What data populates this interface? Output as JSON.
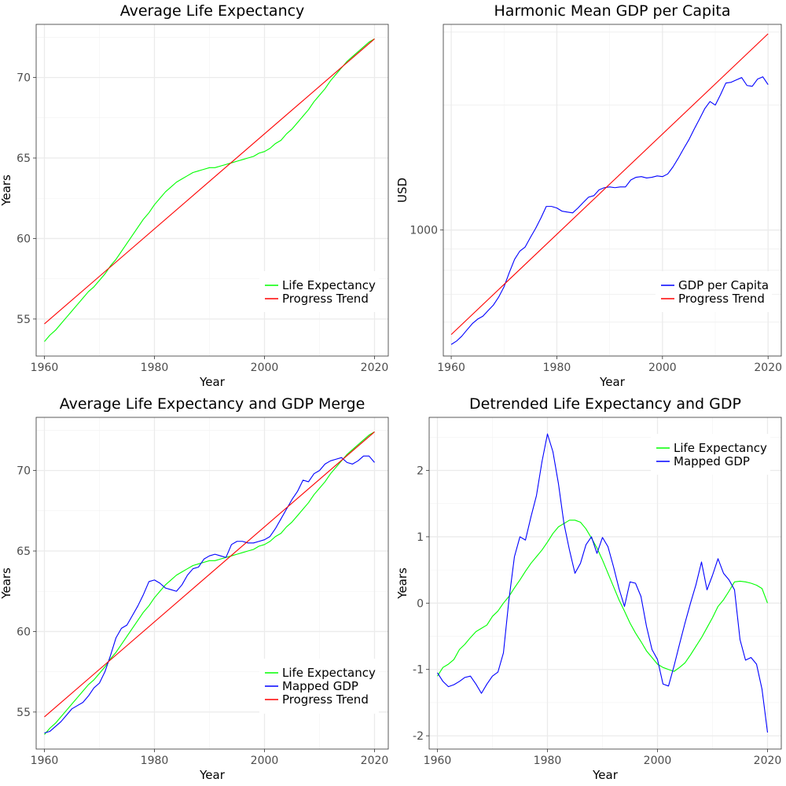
{
  "chart_data": [
    {
      "type": "line",
      "title": "Average Life Expectancy",
      "xlabel": "Year",
      "ylabel": "Years",
      "xlim": [
        1958.5,
        2022.5
      ],
      "ylim": [
        52.7,
        73.3
      ],
      "xticks": [
        1960,
        1980,
        2000,
        2020
      ],
      "yticks": [
        55,
        60,
        65,
        70
      ],
      "ytick_labels": [
        "55",
        "60",
        "65",
        "70"
      ],
      "grid": true,
      "legend_position": "bottom-right",
      "series": [
        {
          "name": "Life Expectancy",
          "color": "#00ff00",
          "x": [
            1960,
            1961,
            1962,
            1963,
            1964,
            1965,
            1966,
            1967,
            1968,
            1969,
            1970,
            1971,
            1972,
            1973,
            1974,
            1975,
            1976,
            1977,
            1978,
            1979,
            1980,
            1981,
            1982,
            1983,
            1984,
            1985,
            1986,
            1987,
            1988,
            1989,
            1990,
            1991,
            1992,
            1993,
            1994,
            1995,
            1996,
            1997,
            1998,
            1999,
            2000,
            2001,
            2002,
            2003,
            2004,
            2005,
            2006,
            2007,
            2008,
            2009,
            2010,
            2011,
            2012,
            2013,
            2014,
            2015,
            2016,
            2017,
            2018,
            2019,
            2020
          ],
          "y": [
            53.6,
            54.0,
            54.3,
            54.7,
            55.1,
            55.5,
            55.9,
            56.3,
            56.7,
            57.0,
            57.4,
            57.8,
            58.3,
            58.7,
            59.2,
            59.7,
            60.2,
            60.7,
            61.2,
            61.6,
            62.1,
            62.5,
            62.9,
            63.2,
            63.5,
            63.7,
            63.9,
            64.1,
            64.2,
            64.3,
            64.4,
            64.4,
            64.5,
            64.6,
            64.7,
            64.8,
            64.9,
            65.0,
            65.1,
            65.3,
            65.4,
            65.6,
            65.9,
            66.1,
            66.5,
            66.8,
            67.2,
            67.6,
            68.0,
            68.5,
            68.9,
            69.3,
            69.8,
            70.2,
            70.6,
            71.0,
            71.3,
            71.6,
            71.9,
            72.2,
            72.4
          ]
        },
        {
          "name": "Progress Trend",
          "color": "#ff0000",
          "x": [
            1960,
            2020
          ],
          "y": [
            54.7,
            72.4
          ]
        }
      ]
    },
    {
      "type": "line",
      "title": "Harmonic Mean GDP per Capita",
      "xlabel": "Year",
      "ylabel": "USD",
      "xlim": [
        1958.5,
        2022.5
      ],
      "ylim": [
        497,
        3130
      ],
      "y_scale": "log",
      "xticks": [
        1960,
        1980,
        2000,
        2020
      ],
      "yticks": [
        1000
      ],
      "ytick_labels": [
        "1000"
      ],
      "grid": true,
      "legend_position": "bottom-right",
      "series": [
        {
          "name": "GDP per Capita",
          "color": "#0000ff",
          "x": [
            1960,
            1961,
            1962,
            1963,
            1964,
            1965,
            1966,
            1967,
            1968,
            1969,
            1970,
            1971,
            1972,
            1973,
            1974,
            1975,
            1976,
            1977,
            1978,
            1979,
            1980,
            1981,
            1982,
            1983,
            1984,
            1985,
            1986,
            1987,
            1988,
            1989,
            1990,
            1991,
            1992,
            1993,
            1994,
            1995,
            1996,
            1997,
            1998,
            1999,
            2000,
            2001,
            2002,
            2003,
            2004,
            2005,
            2006,
            2007,
            2008,
            2009,
            2010,
            2011,
            2012,
            2013,
            2014,
            2015,
            2016,
            2017,
            2018,
            2019,
            2020
          ],
          "y": [
            530,
            540,
            555,
            575,
            595,
            610,
            620,
            640,
            660,
            690,
            730,
            790,
            850,
            890,
            910,
            960,
            1010,
            1070,
            1140,
            1140,
            1130,
            1110,
            1105,
            1100,
            1130,
            1165,
            1200,
            1210,
            1250,
            1265,
            1270,
            1265,
            1270,
            1270,
            1320,
            1340,
            1345,
            1335,
            1340,
            1350,
            1345,
            1365,
            1420,
            1490,
            1570,
            1650,
            1750,
            1850,
            1960,
            2040,
            2000,
            2120,
            2260,
            2270,
            2300,
            2330,
            2230,
            2220,
            2310,
            2340,
            2240
          ]
        },
        {
          "name": "Progress Trend",
          "color": "#ff0000",
          "x": [
            1960,
            2020
          ],
          "y": [
            560,
            2970
          ]
        }
      ]
    },
    {
      "type": "line",
      "title": "Average Life Expectancy and GDP Merge",
      "xlabel": "Year",
      "ylabel": "Years",
      "xlim": [
        1958.5,
        2022.5
      ],
      "ylim": [
        52.7,
        73.3
      ],
      "xticks": [
        1960,
        1980,
        2000,
        2020
      ],
      "yticks": [
        55,
        60,
        65,
        70
      ],
      "ytick_labels": [
        "55",
        "60",
        "65",
        "70"
      ],
      "grid": true,
      "legend_position": "bottom-right",
      "series": [
        {
          "name": "Life Expectancy",
          "color": "#00ff00",
          "x": [
            1960,
            1961,
            1962,
            1963,
            1964,
            1965,
            1966,
            1967,
            1968,
            1969,
            1970,
            1971,
            1972,
            1973,
            1974,
            1975,
            1976,
            1977,
            1978,
            1979,
            1980,
            1981,
            1982,
            1983,
            1984,
            1985,
            1986,
            1987,
            1988,
            1989,
            1990,
            1991,
            1992,
            1993,
            1994,
            1995,
            1996,
            1997,
            1998,
            1999,
            2000,
            2001,
            2002,
            2003,
            2004,
            2005,
            2006,
            2007,
            2008,
            2009,
            2010,
            2011,
            2012,
            2013,
            2014,
            2015,
            2016,
            2017,
            2018,
            2019,
            2020
          ],
          "y": [
            53.6,
            54.0,
            54.3,
            54.7,
            55.1,
            55.5,
            55.9,
            56.3,
            56.7,
            57.0,
            57.4,
            57.8,
            58.3,
            58.7,
            59.2,
            59.7,
            60.2,
            60.7,
            61.2,
            61.6,
            62.1,
            62.5,
            62.9,
            63.2,
            63.5,
            63.7,
            63.9,
            64.1,
            64.2,
            64.3,
            64.4,
            64.4,
            64.5,
            64.6,
            64.7,
            64.8,
            64.9,
            65.0,
            65.1,
            65.3,
            65.4,
            65.6,
            65.9,
            66.1,
            66.5,
            66.8,
            67.2,
            67.6,
            68.0,
            68.5,
            68.9,
            69.3,
            69.8,
            70.2,
            70.6,
            71.0,
            71.3,
            71.6,
            71.9,
            72.2,
            72.4
          ]
        },
        {
          "name": "Mapped GDP",
          "color": "#0000ff",
          "x": [
            1960,
            1961,
            1962,
            1963,
            1964,
            1965,
            1966,
            1967,
            1968,
            1969,
            1970,
            1971,
            1972,
            1973,
            1974,
            1975,
            1976,
            1977,
            1978,
            1979,
            1980,
            1981,
            1982,
            1983,
            1984,
            1985,
            1986,
            1987,
            1988,
            1989,
            1990,
            1991,
            1992,
            1993,
            1994,
            1995,
            1996,
            1997,
            1998,
            1999,
            2000,
            2001,
            2002,
            2003,
            2004,
            2005,
            2006,
            2007,
            2008,
            2009,
            2010,
            2011,
            2012,
            2013,
            2014,
            2015,
            2016,
            2017,
            2018,
            2019,
            2020
          ],
          "y": [
            53.7,
            53.8,
            54.1,
            54.4,
            54.8,
            55.2,
            55.4,
            55.6,
            56.0,
            56.5,
            56.8,
            57.5,
            58.5,
            59.6,
            60.2,
            60.4,
            61.0,
            61.6,
            62.3,
            63.1,
            63.2,
            63.0,
            62.7,
            62.6,
            62.5,
            62.9,
            63.5,
            63.9,
            64.0,
            64.5,
            64.7,
            64.8,
            64.7,
            64.6,
            65.4,
            65.6,
            65.6,
            65.5,
            65.5,
            65.6,
            65.7,
            65.9,
            66.4,
            67.0,
            67.6,
            68.2,
            68.7,
            69.4,
            69.3,
            69.8,
            70.0,
            70.4,
            70.6,
            70.7,
            70.8,
            70.5,
            70.4,
            70.6,
            70.9,
            70.9,
            70.5
          ]
        },
        {
          "name": "Progress Trend",
          "color": "#ff0000",
          "x": [
            1960,
            2020
          ],
          "y": [
            54.7,
            72.4
          ]
        }
      ]
    },
    {
      "type": "line",
      "title": "Detrended Life Expectancy and GDP",
      "xlabel": "Year",
      "ylabel": "Years",
      "xlim": [
        1958.5,
        2022.5
      ],
      "ylim": [
        -2.2,
        2.8
      ],
      "xticks": [
        1960,
        1980,
        2000,
        2020
      ],
      "yticks": [
        -2,
        -1,
        0,
        1,
        2
      ],
      "ytick_labels": [
        "-2",
        "-1",
        "0",
        "1",
        "2"
      ],
      "grid": true,
      "legend_position": "top-right",
      "series": [
        {
          "name": "Life Expectancy",
          "color": "#00ff00",
          "x": [
            1960,
            1961,
            1962,
            1963,
            1964,
            1965,
            1966,
            1967,
            1968,
            1969,
            1970,
            1971,
            1972,
            1973,
            1974,
            1975,
            1976,
            1977,
            1978,
            1979,
            1980,
            1981,
            1982,
            1983,
            1984,
            1985,
            1986,
            1987,
            1988,
            1989,
            1990,
            1991,
            1992,
            1993,
            1994,
            1995,
            1996,
            1997,
            1998,
            1999,
            2000,
            2001,
            2002,
            2003,
            2004,
            2005,
            2006,
            2007,
            2008,
            2009,
            2010,
            2011,
            2012,
            2013,
            2014,
            2015,
            2016,
            2017,
            2018,
            2019,
            2020
          ],
          "y": [
            -1.1,
            -0.97,
            -0.92,
            -0.85,
            -0.7,
            -0.62,
            -0.52,
            -0.43,
            -0.38,
            -0.33,
            -0.2,
            -0.12,
            0.0,
            0.1,
            0.23,
            0.35,
            0.48,
            0.6,
            0.7,
            0.8,
            0.92,
            1.05,
            1.15,
            1.2,
            1.25,
            1.25,
            1.22,
            1.12,
            0.98,
            0.83,
            0.65,
            0.45,
            0.25,
            0.05,
            -0.12,
            -0.3,
            -0.45,
            -0.58,
            -0.72,
            -0.82,
            -0.92,
            -0.97,
            -1.0,
            -1.03,
            -0.97,
            -0.9,
            -0.78,
            -0.65,
            -0.52,
            -0.37,
            -0.22,
            -0.05,
            0.05,
            0.18,
            0.32,
            0.33,
            0.32,
            0.3,
            0.27,
            0.22,
            0.0
          ]
        },
        {
          "name": "Mapped GDP",
          "color": "#0000ff",
          "x": [
            1960,
            1961,
            1962,
            1963,
            1964,
            1965,
            1966,
            1967,
            1968,
            1969,
            1970,
            1971,
            1972,
            1973,
            1974,
            1975,
            1976,
            1977,
            1978,
            1979,
            1980,
            1981,
            1982,
            1983,
            1984,
            1985,
            1986,
            1987,
            1988,
            1989,
            1990,
            1991,
            1992,
            1993,
            1994,
            1995,
            1996,
            1997,
            1998,
            1999,
            2000,
            2001,
            2002,
            2003,
            2004,
            2005,
            2006,
            2007,
            2008,
            2009,
            2010,
            2011,
            2012,
            2013,
            2014,
            2015,
            2016,
            2017,
            2018,
            2019,
            2020
          ],
          "y": [
            -1.05,
            -1.18,
            -1.26,
            -1.23,
            -1.18,
            -1.12,
            -1.1,
            -1.22,
            -1.36,
            -1.22,
            -1.1,
            -1.04,
            -0.75,
            0.05,
            0.7,
            1.0,
            0.95,
            1.3,
            1.62,
            2.13,
            2.55,
            2.28,
            1.8,
            1.2,
            0.8,
            0.45,
            0.6,
            0.88,
            1.0,
            0.75,
            0.99,
            0.85,
            0.55,
            0.22,
            -0.05,
            0.32,
            0.3,
            0.1,
            -0.35,
            -0.7,
            -0.85,
            -1.22,
            -1.25,
            -0.95,
            -0.62,
            -0.3,
            0.0,
            0.28,
            0.62,
            0.2,
            0.42,
            0.67,
            0.45,
            0.35,
            0.2,
            -0.55,
            -0.86,
            -0.82,
            -0.92,
            -1.3,
            -1.95
          ]
        }
      ]
    }
  ]
}
